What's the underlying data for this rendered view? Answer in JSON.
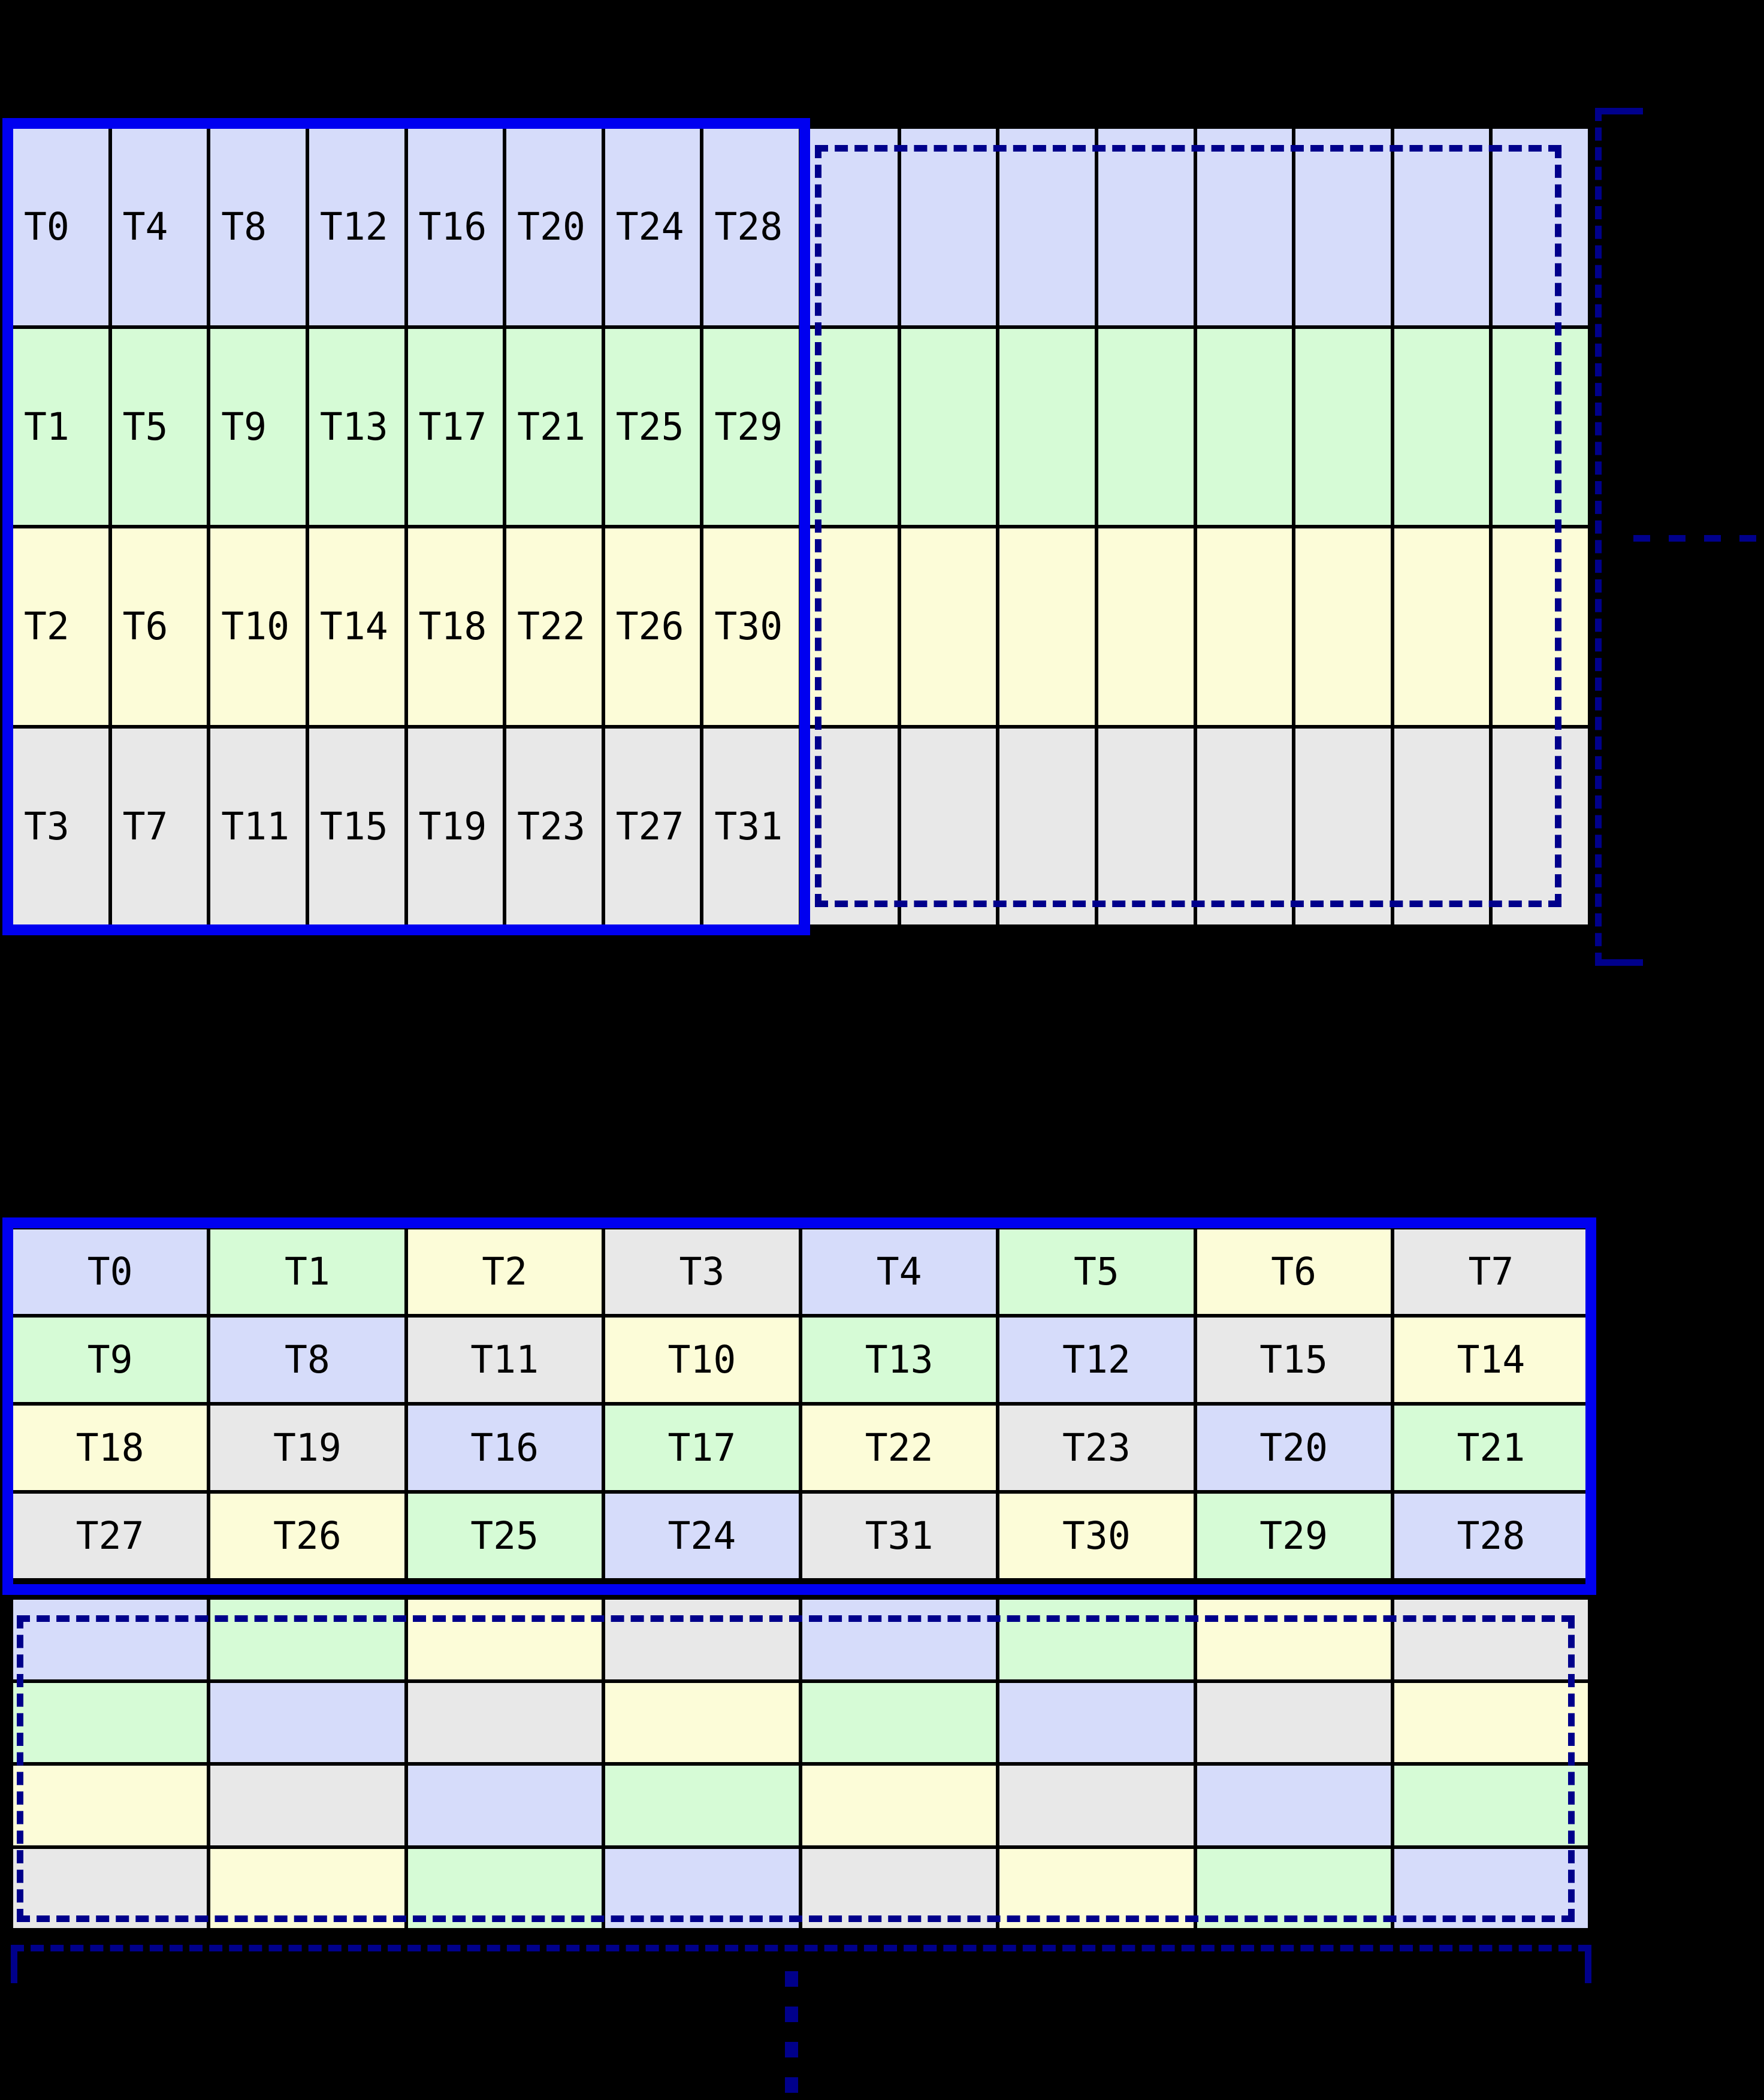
{
  "figure": {
    "palette": [
      "#d6dcfa",
      "#d6fbd6",
      "#fcfcd8",
      "#e8e8e8"
    ],
    "solid_border_color": "#0000f0",
    "dashed_border_color": "#00008b",
    "grid_line_color": "#000000",
    "background_color": "#000000",
    "label_color": "#000000"
  },
  "top_diagram": {
    "rows": 4,
    "labeled_columns": 8,
    "total_columns": 16,
    "row_color_indices": [
      0,
      1,
      2,
      3
    ],
    "labels": [
      [
        "T0",
        "T4",
        "T8",
        "T12",
        "T16",
        "T20",
        "T24",
        "T28"
      ],
      [
        "T1",
        "T5",
        "T9",
        "T13",
        "T17",
        "T21",
        "T25",
        "T29"
      ],
      [
        "T2",
        "T6",
        "T10",
        "T14",
        "T18",
        "T22",
        "T26",
        "T30"
      ],
      [
        "T3",
        "T7",
        "T11",
        "T15",
        "T19",
        "T23",
        "T27",
        "T31"
      ]
    ],
    "continuation": "right"
  },
  "bottom_diagram": {
    "rows": 4,
    "columns": 8,
    "labels": [
      [
        "T0",
        "T1",
        "T2",
        "T3",
        "T4",
        "T5",
        "T6",
        "T7"
      ],
      [
        "T9",
        "T8",
        "T11",
        "T10",
        "T13",
        "T12",
        "T15",
        "T14"
      ],
      [
        "T18",
        "T19",
        "T16",
        "T17",
        "T22",
        "T23",
        "T20",
        "T21"
      ],
      [
        "T27",
        "T26",
        "T25",
        "T24",
        "T31",
        "T30",
        "T29",
        "T28"
      ]
    ],
    "color_indices": [
      [
        0,
        1,
        2,
        3,
        0,
        1,
        2,
        3
      ],
      [
        1,
        0,
        3,
        2,
        1,
        0,
        3,
        2
      ],
      [
        2,
        3,
        0,
        1,
        2,
        3,
        0,
        1
      ],
      [
        3,
        2,
        1,
        0,
        3,
        2,
        1,
        0
      ]
    ],
    "unlabeled_block_color_indices": [
      [
        0,
        1,
        2,
        3,
        0,
        1,
        2,
        3
      ],
      [
        1,
        0,
        3,
        2,
        1,
        0,
        3,
        2
      ],
      [
        2,
        3,
        0,
        1,
        2,
        3,
        0,
        1
      ],
      [
        3,
        2,
        1,
        0,
        3,
        2,
        1,
        0
      ]
    ],
    "continuation": "down"
  }
}
